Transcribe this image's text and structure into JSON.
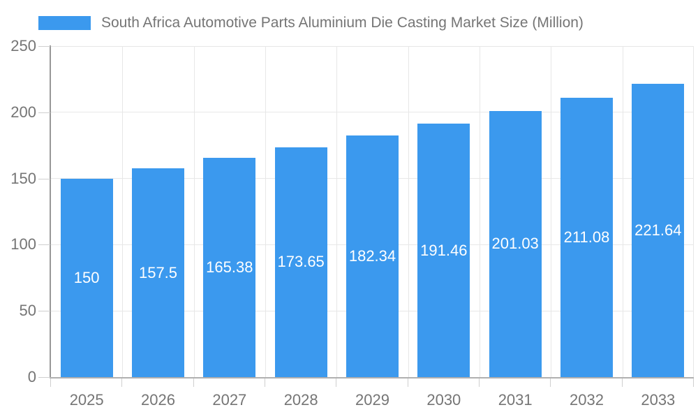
{
  "legend": {
    "label": "South Africa Automotive Parts Aluminium Die Casting Market Size (Million)"
  },
  "colors": {
    "bar": "#3B99EE",
    "bar_label_text": "#FFFFFF",
    "axis_text": "#757575",
    "grid_line": "#E7E7E7",
    "tick_line": "#CFCFCF",
    "y_axis_line": "#979797",
    "x_axis_line": "#B0B0B0"
  },
  "chart_data": {
    "type": "bar",
    "title": "South Africa Automotive Parts Aluminium Die Casting Market Size (Million)",
    "xlabel": "",
    "ylabel": "",
    "categories": [
      "2025",
      "2026",
      "2027",
      "2028",
      "2029",
      "2030",
      "2031",
      "2032",
      "2033"
    ],
    "values": [
      150,
      157.5,
      165.38,
      173.65,
      182.34,
      191.46,
      201.03,
      211.08,
      221.64
    ],
    "value_labels": [
      "150",
      "157.5",
      "165.38",
      "173.65",
      "182.34",
      "191.46",
      "201.03",
      "211.08",
      "221.64"
    ],
    "ylim": [
      0,
      250
    ],
    "yticks": [
      0,
      50,
      100,
      150,
      200,
      250
    ],
    "grid": true,
    "legend_position": "top",
    "series_name": "South Africa Automotive Parts Aluminium Die Casting Market Size (Million)"
  }
}
